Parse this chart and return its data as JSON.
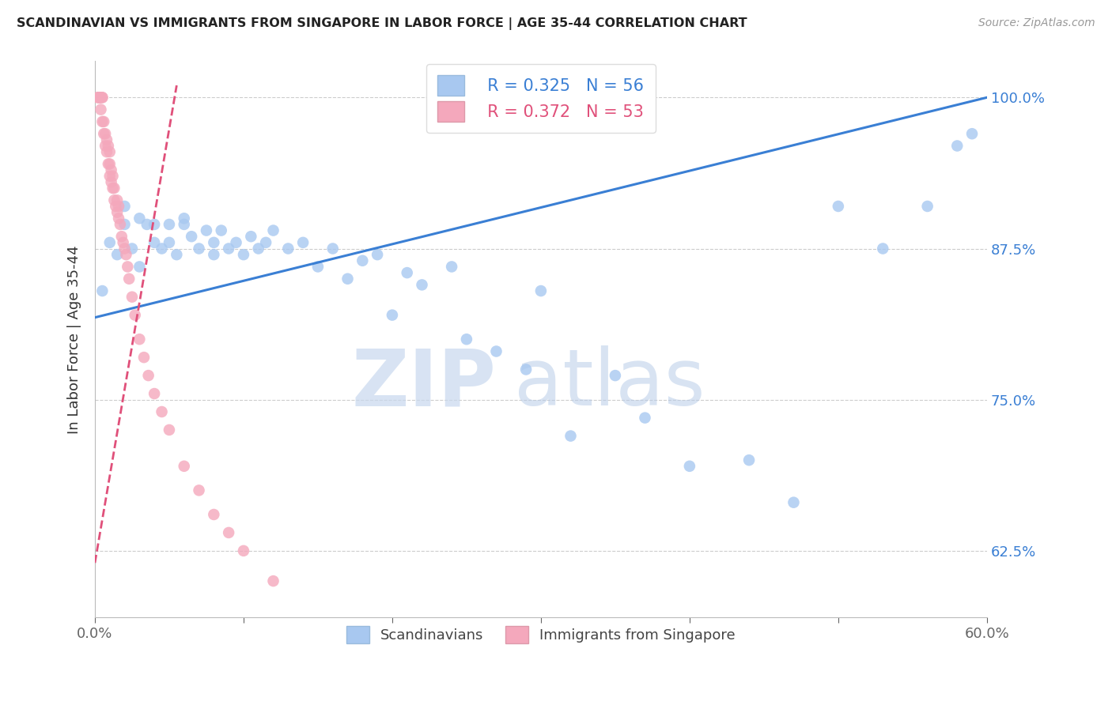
{
  "title": "SCANDINAVIAN VS IMMIGRANTS FROM SINGAPORE IN LABOR FORCE | AGE 35-44 CORRELATION CHART",
  "source": "Source: ZipAtlas.com",
  "ylabel": "In Labor Force | Age 35-44",
  "right_ytick_labels": [
    "100.0%",
    "87.5%",
    "75.0%",
    "62.5%"
  ],
  "right_ytick_values": [
    1.0,
    0.875,
    0.75,
    0.625
  ],
  "xlim": [
    0.0,
    0.6
  ],
  "ylim": [
    0.57,
    1.03
  ],
  "xtick_values": [
    0.0,
    0.1,
    0.2,
    0.3,
    0.4,
    0.5,
    0.6
  ],
  "legend_blue_label": "Scandinavians",
  "legend_pink_label": "Immigrants from Singapore",
  "legend_blue_R": "R = 0.325",
  "legend_blue_N": "N = 56",
  "legend_pink_R": "R = 0.372",
  "legend_pink_N": "N = 53",
  "blue_color": "#a8c8f0",
  "pink_color": "#f4a8bc",
  "blue_line_color": "#3a7fd4",
  "pink_line_color": "#e0507a",
  "watermark_zip": "ZIP",
  "watermark_atlas": "atlas",
  "blue_scatter_x": [
    0.005,
    0.01,
    0.015,
    0.02,
    0.02,
    0.025,
    0.03,
    0.03,
    0.035,
    0.04,
    0.04,
    0.045,
    0.05,
    0.05,
    0.055,
    0.06,
    0.06,
    0.065,
    0.07,
    0.075,
    0.08,
    0.08,
    0.085,
    0.09,
    0.095,
    0.1,
    0.105,
    0.11,
    0.115,
    0.12,
    0.13,
    0.14,
    0.15,
    0.16,
    0.17,
    0.18,
    0.19,
    0.2,
    0.21,
    0.22,
    0.24,
    0.25,
    0.27,
    0.29,
    0.3,
    0.32,
    0.35,
    0.37,
    0.4,
    0.44,
    0.47,
    0.5,
    0.53,
    0.56,
    0.58,
    0.59
  ],
  "blue_scatter_y": [
    0.84,
    0.88,
    0.87,
    0.895,
    0.91,
    0.875,
    0.86,
    0.9,
    0.895,
    0.88,
    0.895,
    0.875,
    0.88,
    0.895,
    0.87,
    0.895,
    0.9,
    0.885,
    0.875,
    0.89,
    0.87,
    0.88,
    0.89,
    0.875,
    0.88,
    0.87,
    0.885,
    0.875,
    0.88,
    0.89,
    0.875,
    0.88,
    0.86,
    0.875,
    0.85,
    0.865,
    0.87,
    0.82,
    0.855,
    0.845,
    0.86,
    0.8,
    0.79,
    0.775,
    0.84,
    0.72,
    0.77,
    0.735,
    0.695,
    0.7,
    0.665,
    0.91,
    0.875,
    0.91,
    0.96,
    0.97
  ],
  "pink_scatter_x": [
    0.002,
    0.002,
    0.003,
    0.003,
    0.003,
    0.004,
    0.004,
    0.005,
    0.005,
    0.005,
    0.006,
    0.006,
    0.007,
    0.007,
    0.008,
    0.008,
    0.009,
    0.009,
    0.01,
    0.01,
    0.01,
    0.011,
    0.011,
    0.012,
    0.012,
    0.013,
    0.013,
    0.014,
    0.015,
    0.015,
    0.016,
    0.016,
    0.017,
    0.018,
    0.019,
    0.02,
    0.021,
    0.022,
    0.023,
    0.025,
    0.027,
    0.03,
    0.033,
    0.036,
    0.04,
    0.045,
    0.05,
    0.06,
    0.07,
    0.08,
    0.09,
    0.1,
    0.12
  ],
  "pink_scatter_y": [
    1.0,
    1.0,
    1.0,
    1.0,
    1.0,
    1.0,
    0.99,
    1.0,
    1.0,
    0.98,
    0.97,
    0.98,
    0.96,
    0.97,
    0.955,
    0.965,
    0.945,
    0.96,
    0.935,
    0.945,
    0.955,
    0.93,
    0.94,
    0.925,
    0.935,
    0.915,
    0.925,
    0.91,
    0.905,
    0.915,
    0.9,
    0.91,
    0.895,
    0.885,
    0.88,
    0.875,
    0.87,
    0.86,
    0.85,
    0.835,
    0.82,
    0.8,
    0.785,
    0.77,
    0.755,
    0.74,
    0.725,
    0.695,
    0.675,
    0.655,
    0.64,
    0.625,
    0.6
  ],
  "blue_trendline_x": [
    0.0,
    0.6
  ],
  "blue_trendline_y": [
    0.818,
    1.0
  ],
  "pink_trendline_x": [
    0.0,
    0.055
  ],
  "pink_trendline_y": [
    0.615,
    1.01
  ]
}
